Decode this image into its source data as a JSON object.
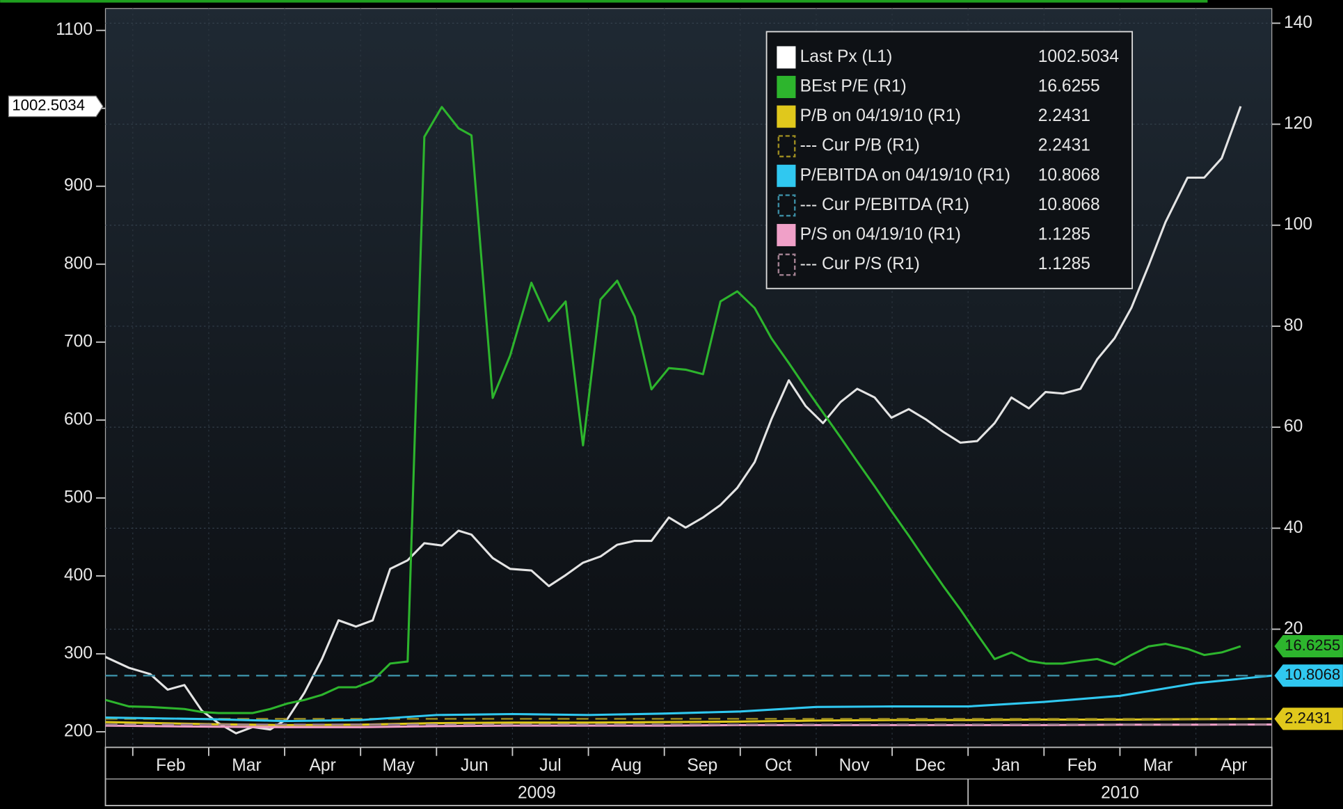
{
  "chart_data": {
    "type": "line",
    "x": [
      0.64,
      0.95,
      1.23,
      1.46,
      1.68,
      1.91,
      2.13,
      2.36,
      2.58,
      2.81,
      3.04,
      3.26,
      3.49,
      3.71,
      3.94,
      4.16,
      4.39,
      4.62,
      4.84,
      5.07,
      5.29,
      5.46,
      5.74,
      5.97,
      6.25,
      6.48,
      6.7,
      6.93,
      7.16,
      7.38,
      7.61,
      7.83,
      8.06,
      8.28,
      8.51,
      8.74,
      8.96,
      9.19,
      9.41,
      9.64,
      9.86,
      10.09,
      10.32,
      10.54,
      10.77,
      10.99,
      11.22,
      11.44,
      11.67,
      11.9,
      12.12,
      12.35,
      12.57,
      12.8,
      13.02,
      13.25,
      13.48,
      13.7,
      13.93,
      14.15,
      14.38,
      14.6,
      14.89,
      15.11,
      15.34,
      15.59
    ],
    "xlim": [
      0.64,
      16
    ],
    "xticks": [
      {
        "value": 1,
        "label": "Feb"
      },
      {
        "value": 2,
        "label": "Mar"
      },
      {
        "value": 3,
        "label": "Apr"
      },
      {
        "value": 4,
        "label": "May"
      },
      {
        "value": 5,
        "label": "Jun"
      },
      {
        "value": 6,
        "label": "Jul"
      },
      {
        "value": 7,
        "label": "Aug"
      },
      {
        "value": 8,
        "label": "Sep"
      },
      {
        "value": 9,
        "label": "Oct"
      },
      {
        "value": 10,
        "label": "Nov"
      },
      {
        "value": 11,
        "label": "Dec"
      },
      {
        "value": 12,
        "label": "Jan"
      },
      {
        "value": 13,
        "label": "Feb"
      },
      {
        "value": 14,
        "label": "Mar"
      },
      {
        "value": 15,
        "label": "Apr"
      }
    ],
    "x_groups": [
      {
        "label": "2009",
        "start": 0.64,
        "end": 12
      },
      {
        "label": "2010",
        "start": 12,
        "end": 16
      }
    ],
    "ylim": [
      180,
      1128
    ],
    "yticks": [
      200,
      300,
      400,
      500,
      600,
      700,
      800,
      900,
      1000,
      1100
    ],
    "y2lim": [
      -3.4,
      142.9
    ],
    "y2ticks": [
      20,
      40,
      60,
      80,
      100,
      120,
      140
    ],
    "grid": true,
    "legend": "upper right",
    "series": [
      {
        "name": "Last Px (L1)",
        "color": "#e4e4e4",
        "axis": "y",
        "tag": "left",
        "values": [
          296,
          282,
          274,
          254,
          260,
          227,
          211,
          198,
          206,
          203,
          217,
          250,
          293,
          343,
          335,
          343,
          409,
          420,
          442,
          439,
          458,
          453,
          423,
          409,
          407,
          387,
          401,
          417,
          425,
          440,
          445,
          445,
          475,
          462,
          475,
          491,
          513,
          546,
          601,
          651,
          618,
          596,
          623,
          640,
          629,
          603,
          614,
          601,
          585,
          571,
          573,
          596,
          629,
          615,
          636,
          634,
          640,
          678,
          705,
          744,
          799,
          854,
          911,
          911,
          936,
          1002.5034
        ]
      },
      {
        "name": "BEst P/E (R1)",
        "color": "#2db52d",
        "axis": "y2",
        "tag": "right",
        "values": [
          6.0,
          4.7,
          4.6,
          4.4,
          4.2,
          3.6,
          3.4,
          3.4,
          3.4,
          4.2,
          5.3,
          6.0,
          7.0,
          8.5,
          8.5,
          9.8,
          13.2,
          13.6,
          117.5,
          123.4,
          119.2,
          117.8,
          65.8,
          74.2,
          88.6,
          81.0,
          84.9,
          56.4,
          85.3,
          89.0,
          81.9,
          67.5,
          71.7,
          71.4,
          70.5,
          84.9,
          86.9,
          83.6,
          77.6,
          72.7,
          67.8,
          62.9,
          58.0,
          53.2,
          48.3,
          43.4,
          38.5,
          33.6,
          28.6,
          23.9,
          19.0,
          14.1,
          15.4,
          13.7,
          13.2,
          13.2,
          13.7,
          14.1,
          13.0,
          14.9,
          16.6,
          17.1,
          16.1,
          14.9,
          15.4,
          16.6255
        ]
      },
      {
        "name": "P/B on 04/19/10 (R1)",
        "color": "#e0c81c",
        "axis": "y2",
        "x": [
          0.64,
          2,
          3,
          4,
          5,
          6,
          7,
          8,
          9,
          10,
          11,
          12,
          13,
          14,
          15,
          16
        ],
        "values": [
          1.6,
          1.2,
          1.0,
          1.1,
          1.4,
          1.5,
          1.5,
          1.6,
          1.7,
          1.9,
          2.0,
          2.0,
          2.1,
          2.1,
          2.2,
          2.2431
        ]
      },
      {
        "name": "--- Cur P/B (R1)",
        "color": "#9a8a20",
        "axis": "y2",
        "dash": true,
        "tag": "right",
        "x": [
          0.64,
          16
        ],
        "values": [
          2.2431,
          2.2431
        ]
      },
      {
        "name": "P/EBITDA on 04/19/10 (R1)",
        "color": "#30c8f0",
        "axis": "y2",
        "x": [
          0.64,
          2,
          3,
          4,
          5,
          6,
          7,
          8,
          9,
          10,
          11,
          12,
          13,
          14,
          15,
          16
        ],
        "values": [
          2.5,
          2.2,
          1.8,
          2.0,
          3.0,
          3.2,
          3.0,
          3.3,
          3.7,
          4.6,
          4.7,
          4.7,
          5.6,
          6.8,
          9.3,
          10.8068
        ]
      },
      {
        "name": "--- Cur P/EBITDA (R1)",
        "color": "#3a8aa0",
        "axis": "y2",
        "dash": true,
        "tag": "right",
        "x": [
          0.64,
          16
        ],
        "values": [
          10.8068,
          10.8068
        ]
      },
      {
        "name": "P/S on 04/19/10 (R1)",
        "color": "#f0a0c8",
        "axis": "y2",
        "x": [
          0.64,
          2,
          3,
          4,
          5,
          6,
          7,
          8,
          9,
          10,
          11,
          12,
          13,
          14,
          15,
          16
        ],
        "values": [
          0.9,
          0.7,
          0.6,
          0.6,
          0.8,
          0.9,
          0.9,
          0.9,
          1.0,
          1.0,
          1.0,
          1.0,
          1.0,
          1.1,
          1.1,
          1.1285
        ]
      },
      {
        "name": "--- Cur P/S (R1)",
        "color": "#a08090",
        "axis": "y2",
        "dash": true,
        "x": [
          0.64,
          16
        ],
        "values": [
          1.1285,
          1.1285
        ]
      }
    ]
  }
}
